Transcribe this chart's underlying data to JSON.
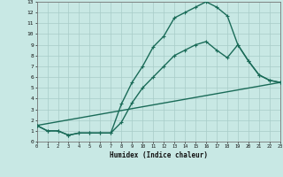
{
  "xlabel": "Humidex (Indice chaleur)",
  "bg_color": "#c8e8e4",
  "grid_color": "#a8ccc8",
  "line_color": "#1a6b58",
  "xlim": [
    0,
    23
  ],
  "ylim": [
    0,
    13
  ],
  "xticks": [
    0,
    1,
    2,
    3,
    4,
    5,
    6,
    7,
    8,
    9,
    10,
    11,
    12,
    13,
    14,
    15,
    16,
    17,
    18,
    19,
    20,
    21,
    22,
    23
  ],
  "yticks": [
    0,
    1,
    2,
    3,
    4,
    5,
    6,
    7,
    8,
    9,
    10,
    11,
    12,
    13
  ],
  "line1_x": [
    0,
    1,
    2,
    3,
    4,
    5,
    6,
    7,
    8,
    9,
    10,
    11,
    12,
    13,
    14,
    15,
    16,
    17,
    18,
    19,
    20,
    21,
    22,
    23
  ],
  "line1_y": [
    1.5,
    1.0,
    1.0,
    0.6,
    0.8,
    0.8,
    0.8,
    0.8,
    3.5,
    5.5,
    7.0,
    8.8,
    9.8,
    11.5,
    12.0,
    12.5,
    13.0,
    12.5,
    11.7,
    9.0,
    7.5,
    6.2,
    5.7,
    5.5
  ],
  "line2_x": [
    0,
    1,
    2,
    3,
    4,
    5,
    6,
    7,
    8,
    9,
    10,
    11,
    12,
    13,
    14,
    15,
    16,
    17,
    18,
    19,
    20,
    21,
    22,
    23
  ],
  "line2_y": [
    1.5,
    1.0,
    1.0,
    0.6,
    0.8,
    0.8,
    0.8,
    0.8,
    1.8,
    3.6,
    5.0,
    6.0,
    7.0,
    8.0,
    8.5,
    9.0,
    9.3,
    8.5,
    7.8,
    9.0,
    7.5,
    6.2,
    5.7,
    5.5
  ],
  "line3_x": [
    0,
    23
  ],
  "line3_y": [
    1.5,
    5.5
  ],
  "linewidth": 1.0,
  "markersize": 3.0
}
